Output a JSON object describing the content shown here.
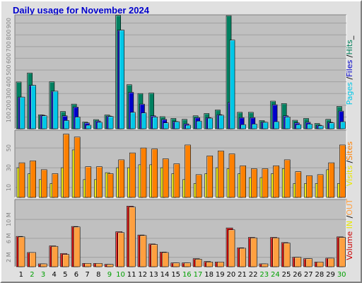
{
  "title": "Daily usage for November 2024",
  "chart_data": [
    {
      "type": "bar",
      "panel": "pages-files-hits",
      "ylabel_parts": [
        {
          "text": "Pages",
          "color": "#00c8e8"
        },
        {
          "text": " /",
          "color": "#000000"
        },
        {
          "text": "Files",
          "color": "#0000cc"
        },
        {
          "text": " /",
          "color": "#000000"
        },
        {
          "text": "Hits",
          "color": "#00805a"
        },
        {
          "text": "_",
          "color": "#000000"
        }
      ],
      "yticks": [
        100,
        200,
        300,
        400,
        500,
        600,
        700,
        800,
        900
      ],
      "ylim": [
        0,
        970
      ],
      "categories": [
        "1",
        "2",
        "3",
        "4",
        "5",
        "6",
        "7",
        "8",
        "9",
        "10",
        "11",
        "12",
        "13",
        "14",
        "15",
        "16",
        "17",
        "18",
        "19",
        "20",
        "21",
        "22",
        "23",
        "24",
        "25",
        "26",
        "27",
        "28",
        "29",
        "30"
      ],
      "weekend_days": [
        "2",
        "3",
        "9",
        "10",
        "16",
        "17",
        "23",
        "24",
        "30"
      ],
      "grid": true,
      "series": [
        {
          "key": "hits",
          "color": "#008060",
          "values": [
            398,
            475,
            118,
            400,
            147,
            210,
            57,
            78,
            117,
            966,
            375,
            300,
            304,
            103,
            88,
            80,
            110,
            130,
            160,
            963,
            140,
            140,
            70,
            235,
            215,
            72,
            88,
            45,
            80,
            190
          ]
        },
        {
          "key": "files",
          "color": "#0000cc",
          "values": [
            270,
            370,
            115,
            320,
            110,
            185,
            50,
            66,
            108,
            840,
            310,
            210,
            110,
            80,
            62,
            42,
            95,
            95,
            120,
            225,
            95,
            95,
            57,
            205,
            110,
            50,
            55,
            30,
            55,
            150
          ]
        },
        {
          "key": "pages",
          "color": "#00c8e8",
          "values": [
            270,
            370,
            110,
            320,
            70,
            100,
            30,
            55,
            105,
            840,
            140,
            135,
            100,
            50,
            60,
            30,
            65,
            90,
            115,
            755,
            35,
            40,
            55,
            60,
            100,
            35,
            40,
            25,
            50,
            60
          ]
        }
      ]
    },
    {
      "type": "bar",
      "panel": "visits-sites",
      "ylabel_parts": [
        {
          "text": "Visits",
          "color": "#e8e800"
        },
        {
          "text": " /",
          "color": "#000000"
        },
        {
          "text": "Sites",
          "color": "#ff8000"
        }
      ],
      "yticks": [
        10,
        30,
        50
      ],
      "ylim": [
        0,
        68
      ],
      "grid": true,
      "series": [
        {
          "key": "visits",
          "color": "#e8e800",
          "values": [
            30,
            24,
            18,
            14,
            30,
            48,
            18,
            18,
            25,
            30,
            30,
            33,
            33,
            30,
            24,
            18,
            14,
            24,
            30,
            29,
            24,
            20,
            20,
            24,
            29,
            14,
            14,
            14,
            28,
            14
          ]
        },
        {
          "key": "sites",
          "color": "#ff8000",
          "values": [
            35,
            37,
            28,
            24,
            64,
            61,
            31,
            31,
            24,
            38,
            45,
            50,
            49,
            39,
            34,
            53,
            23,
            42,
            47,
            44,
            32,
            29,
            29,
            32,
            38,
            26,
            22,
            23,
            35,
            53
          ]
        }
      ]
    },
    {
      "type": "bar",
      "panel": "volume",
      "ylabel_parts": [
        {
          "text": "Volume",
          "color": "#cc0000"
        },
        {
          "text": "  ",
          "color": "#000000"
        },
        {
          "text": "IN",
          "color": "#e8e800"
        },
        {
          "text": " /",
          "color": "#000000"
        },
        {
          "text": "OUT",
          "color": "#ffa040"
        }
      ],
      "yticks": [
        "2 M",
        "6 M",
        "10 M"
      ],
      "ytick_values": [
        2,
        6,
        10
      ],
      "ylim": [
        0,
        14.2
      ],
      "unit": "M",
      "grid": true,
      "series": [
        {
          "key": "volume",
          "color": "#cc0000",
          "values": [
            6.4,
            3.0,
            0.6,
            4.4,
            2.8,
            8.5,
            0.7,
            0.7,
            0.5,
            7.4,
            12.8,
            6.7,
            4.8,
            3.1,
            0.8,
            0.8,
            1.7,
            1.1,
            1.0,
            8.2,
            4.0,
            6.2,
            0.6,
            6.2,
            5.1,
            2.0,
            1.7,
            1.0,
            1.8,
            6.3
          ]
        },
        {
          "key": "out",
          "color": "#ffa040",
          "values": [
            6.3,
            3.0,
            0.6,
            4.3,
            2.6,
            8.4,
            0.7,
            0.7,
            0.5,
            7.2,
            12.6,
            6.6,
            4.7,
            3.0,
            0.8,
            0.8,
            1.6,
            1.0,
            1.0,
            7.8,
            3.9,
            6.1,
            0.6,
            6.1,
            5.0,
            2.0,
            1.7,
            1.0,
            1.8,
            6.2
          ]
        }
      ]
    }
  ]
}
